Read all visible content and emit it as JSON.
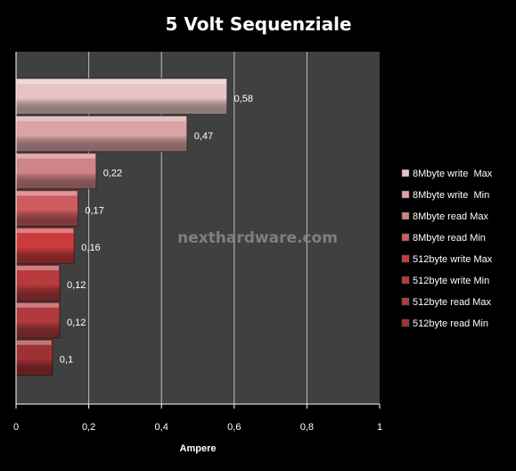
{
  "chart_data": {
    "type": "bar",
    "orientation": "horizontal",
    "title": "5 Volt Sequenziale",
    "xlabel": "Ampere",
    "ylabel": "",
    "xlim": [
      0,
      1
    ],
    "x_ticks": [
      "0",
      "0,2",
      "0,4",
      "0,6",
      "0,8",
      "1"
    ],
    "grid": true,
    "legend_position": "right",
    "watermark": "nexthardware.com",
    "series": [
      {
        "name": "8Mbyte write  Max",
        "value": 0.58,
        "label": "0,58",
        "color": "#e6c4c4"
      },
      {
        "name": "8Mbyte write  Min",
        "value": 0.47,
        "label": "0,47",
        "color": "#dba3a5"
      },
      {
        "name": "8Mbyte read Max",
        "value": 0.22,
        "label": "0,22",
        "color": "#cf8486"
      },
      {
        "name": "8Mbyte read Min",
        "value": 0.17,
        "label": "0,17",
        "color": "#cd5c5e"
      },
      {
        "name": "512byte write Max",
        "value": 0.16,
        "label": "0,16",
        "color": "#cc3b3c"
      },
      {
        "name": "512byte write Min",
        "value": 0.12,
        "label": "0,12",
        "color": "#b83a3c"
      },
      {
        "name": "512byte read Max",
        "value": 0.12,
        "label": "0,12",
        "color": "#b03a3d"
      },
      {
        "name": "512byte read Min",
        "value": 0.1,
        "label": "0,1",
        "color": "#9e3134"
      }
    ]
  }
}
